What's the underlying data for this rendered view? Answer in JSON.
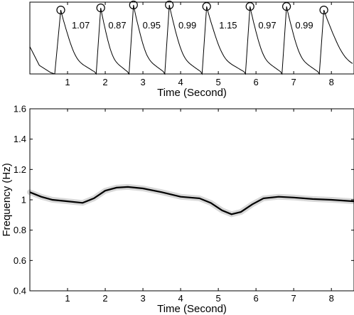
{
  "chart_data": [
    {
      "type": "line",
      "xlabel": "Time (Second)",
      "ylabel": "",
      "xlim": [
        0,
        8.6
      ],
      "ylim": [
        0,
        1
      ],
      "xticks": [
        "1",
        "2",
        "3",
        "4",
        "5",
        "6",
        "7",
        "8"
      ],
      "peaks": {
        "x": [
          0.82,
          1.88,
          2.75,
          3.7,
          4.69,
          5.84,
          6.81,
          7.8
        ],
        "y": [
          0.89,
          0.92,
          0.96,
          0.96,
          0.94,
          0.94,
          0.94,
          0.89
        ]
      },
      "annotations": [
        {
          "x": 1.35,
          "text": "1.07"
        },
        {
          "x": 2.32,
          "text": "0.87"
        },
        {
          "x": 3.23,
          "text": "0.95"
        },
        {
          "x": 4.18,
          "text": "0.99"
        },
        {
          "x": 5.26,
          "text": "1.15"
        },
        {
          "x": 6.3,
          "text": "0.97"
        },
        {
          "x": 7.28,
          "text": "0.99"
        }
      ]
    },
    {
      "type": "heatmap",
      "xlabel": "Time (Second)",
      "ylabel": "Frequency (Hz)",
      "xlim": [
        0,
        8.6
      ],
      "ylim": [
        0.4,
        1.6
      ],
      "xticks": [
        "1",
        "2",
        "3",
        "4",
        "5",
        "6",
        "7",
        "8"
      ],
      "yticks": [
        "0.4",
        "0.6",
        "0.8",
        "1",
        "1.2",
        "1.4",
        "1.6"
      ],
      "ridge": {
        "x": [
          0,
          0.3,
          0.6,
          1.0,
          1.4,
          1.7,
          2.0,
          2.3,
          2.6,
          3.0,
          3.5,
          4.0,
          4.5,
          4.8,
          5.1,
          5.35,
          5.6,
          5.9,
          6.2,
          6.6,
          7.0,
          7.5,
          8.0,
          8.6
        ],
        "y": [
          1.05,
          1.02,
          1.0,
          0.99,
          0.98,
          1.01,
          1.06,
          1.08,
          1.085,
          1.075,
          1.05,
          1.02,
          1.01,
          0.98,
          0.93,
          0.905,
          0.92,
          0.97,
          1.01,
          1.02,
          1.015,
          1.005,
          1.0,
          0.99
        ]
      }
    }
  ]
}
